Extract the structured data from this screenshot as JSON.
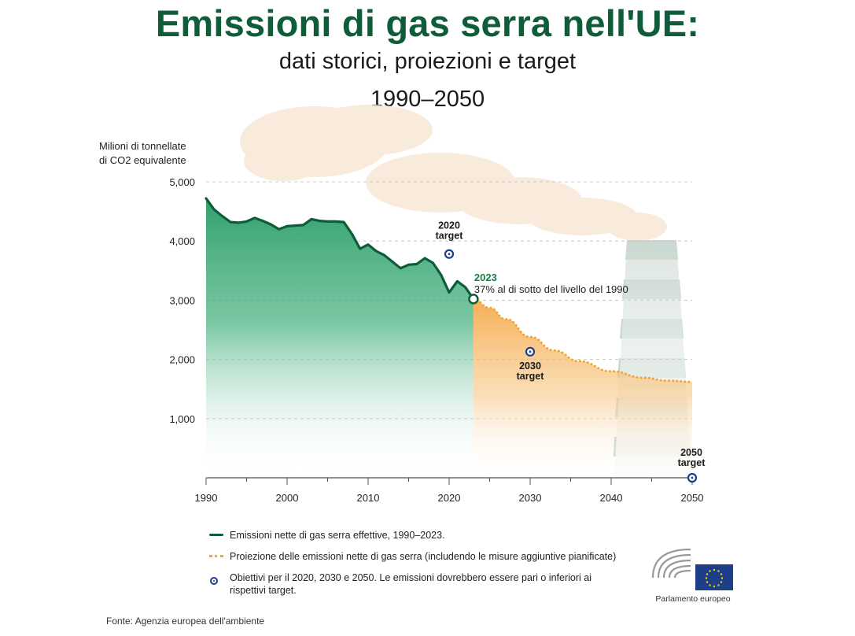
{
  "header": {
    "title": "Emissioni di gas serra nell'UE:",
    "subtitle": "dati storici, proiezioni e target",
    "years": "1990–2050"
  },
  "colors": {
    "title": "#0e5c38",
    "actual_line": "#0e5c38",
    "actual_fill": "#2e9e6b",
    "projection": "#f0a535",
    "target": "#1d3f8a",
    "smoke": "#f7e6d2",
    "chimney": "#d8e2dd"
  },
  "chart_data": {
    "type": "area",
    "ylabel": [
      "Milioni di tonnellate",
      "di CO2 equivalente"
    ],
    "y_ticks": [
      1000,
      2000,
      3000,
      4000,
      5000
    ],
    "y_tick_labels": [
      "1,000",
      "2,000",
      "3,000",
      "4,000",
      "5,000"
    ],
    "ylim": [
      0,
      5000
    ],
    "x_ticks": [
      1990,
      2000,
      2010,
      2020,
      2030,
      2040,
      2050
    ],
    "x_tick_labels": [
      "1990",
      "2000",
      "2010",
      "2020",
      "2030",
      "2040",
      "2050"
    ],
    "xlim": [
      1990,
      2050
    ],
    "series": [
      {
        "name": "actual",
        "x": [
          1990,
          1991,
          1992,
          1993,
          1994,
          1995,
          1996,
          1997,
          1998,
          1999,
          2000,
          2001,
          2002,
          2003,
          2004,
          2005,
          2006,
          2007,
          2008,
          2009,
          2010,
          2011,
          2012,
          2013,
          2014,
          2015,
          2016,
          2017,
          2018,
          2019,
          2020,
          2021,
          2022,
          2023
        ],
        "values": [
          4720,
          4530,
          4420,
          4320,
          4310,
          4330,
          4390,
          4340,
          4280,
          4200,
          4250,
          4260,
          4270,
          4370,
          4340,
          4330,
          4330,
          4320,
          4120,
          3870,
          3940,
          3830,
          3760,
          3650,
          3540,
          3600,
          3610,
          3710,
          3630,
          3430,
          3130,
          3320,
          3220,
          3020
        ]
      },
      {
        "name": "projection",
        "x": [
          2023,
          2025,
          2027,
          2030,
          2033,
          2036,
          2040,
          2044,
          2047,
          2050
        ],
        "values": [
          3020,
          2870,
          2680,
          2380,
          2150,
          1970,
          1800,
          1690,
          1640,
          1620
        ]
      }
    ],
    "targets": [
      {
        "year": 2020,
        "value": 3780,
        "label_line1": "2020",
        "label_line2": "target"
      },
      {
        "year": 2030,
        "value": 2130,
        "label_line1": "2030",
        "label_line2": "target"
      },
      {
        "year": 2050,
        "value": 0,
        "label_line1": "2050",
        "label_line2": "target"
      }
    ],
    "annotation": {
      "year_label": "2023",
      "text": "37% al di sotto del livello del 1990",
      "x": 2023,
      "y": 3020
    }
  },
  "legend": {
    "actual": "Emissioni nette di gas serra effettive, 1990–2023.",
    "projection": "Proiezione delle emissioni nette di gas serra (includendo le misure aggiuntive pianificate)",
    "targets": "Obiettivi per il 2020, 2030 e 2050. Le emissioni dovrebbero essere pari o inferiori ai rispettivi target."
  },
  "source": "Fonte: Agenzia europea dell'ambiente",
  "logo": {
    "name": "Parlamento europeo"
  }
}
